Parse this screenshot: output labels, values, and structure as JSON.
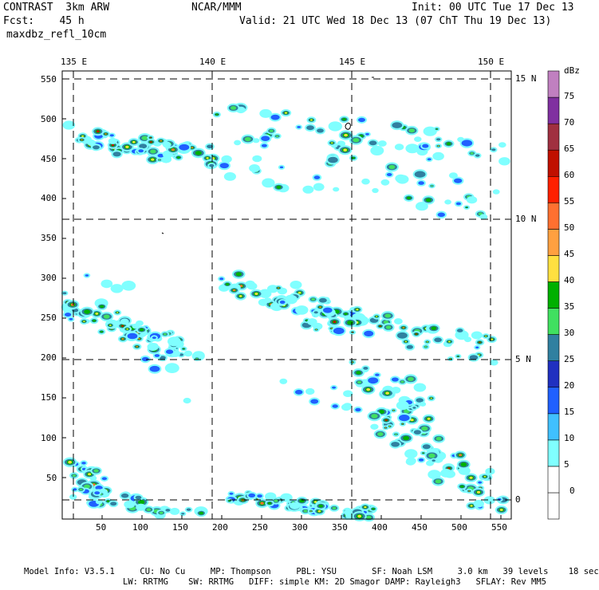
{
  "header": {
    "left_line1": "CONTRAST  3km ARW",
    "left_line2": "Fcst:    45 h",
    "left_line3": "maxdbz_refl_10cm",
    "center": "NCAR/MMM",
    "init": "Init: 00 UTC Tue 17 Dec 13",
    "valid": "Valid: 21 UTC Wed 18 Dec 13 (07 ChT Thu 19 Dec 13)"
  },
  "map": {
    "lon_labels": [
      "135 E",
      "140 E",
      "145 E",
      "150 E"
    ],
    "lat_labels": [
      "15 N",
      "10 N",
      "5 N",
      "0"
    ],
    "x_ticks": [
      "50",
      "100",
      "150",
      "200",
      "250",
      "300",
      "350",
      "400",
      "450",
      "500",
      "550"
    ],
    "y_ticks": [
      "550",
      "500",
      "450",
      "400",
      "350",
      "300",
      "250",
      "200",
      "150",
      "100",
      "50"
    ]
  },
  "colorbar": {
    "unit": "dBz",
    "levels": [
      "75",
      "70",
      "65",
      "60",
      "55",
      "50",
      "45",
      "40",
      "35",
      "30",
      "25",
      "20",
      "15",
      "10",
      "5",
      "0"
    ],
    "colors": [
      "#ffffff",
      "#ffffff",
      "#80ffff",
      "#40c0ff",
      "#2060ff",
      "#2030c0",
      "#3080a0",
      "#40e060",
      "#00b000",
      "#ffe040",
      "#ffa040",
      "#ff7030",
      "#ff2000",
      "#c01000",
      "#a03040",
      "#8030a0",
      "#c080c0"
    ]
  },
  "footer": {
    "line1": "Model Info: V3.5.1     CU: No Cu     MP: Thompson     PBL: YSU       SF: Noah LSM     3.0 km   39 levels    18 sec",
    "line2": "LW: RRTMG    SW: RRTMG   DIFF: simple KM: 2D Smagor DAMP: Rayleigh3   SFLAY: Rev MM5"
  }
}
